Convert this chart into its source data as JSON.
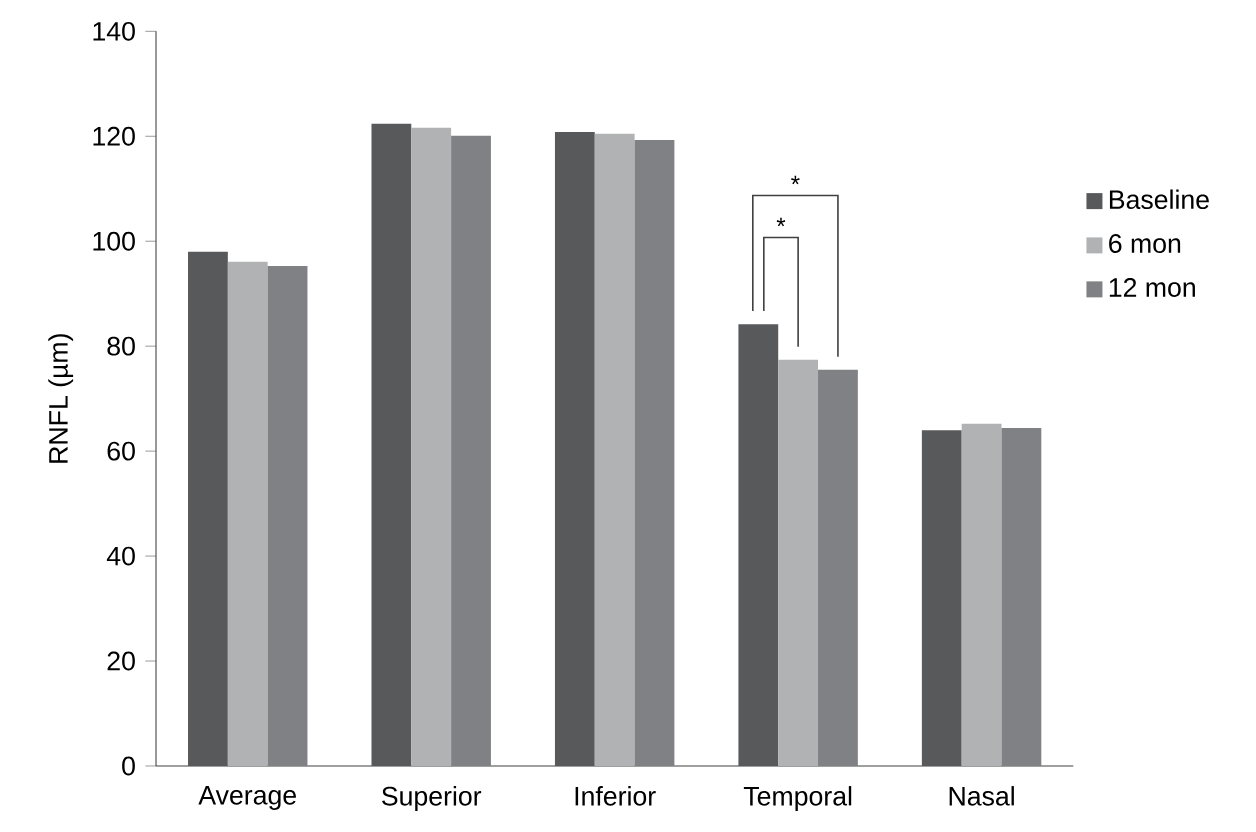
{
  "chart_data": {
    "type": "bar",
    "ylabel": "RNFL (µm)",
    "categories": [
      "Average",
      "Superior",
      "Inferior",
      "Temporal",
      "Nasal"
    ],
    "series": [
      {
        "name": "Baseline",
        "color": "#58595b",
        "values": [
          98.0,
          122.4,
          120.8,
          84.2,
          64.0
        ]
      },
      {
        "name": "6 mon",
        "color": "#b1b2b4",
        "values": [
          96.1,
          121.6,
          120.5,
          77.4,
          65.2
        ]
      },
      {
        "name": "12 mon",
        "color": "#808184",
        "values": [
          95.3,
          120.1,
          119.3,
          75.5,
          64.4
        ]
      }
    ],
    "ylim": [
      0,
      140
    ],
    "yticks": [
      0,
      20,
      40,
      60,
      80,
      100,
      120,
      140
    ],
    "legend": "right",
    "annotations": [
      "*",
      "*"
    ]
  }
}
